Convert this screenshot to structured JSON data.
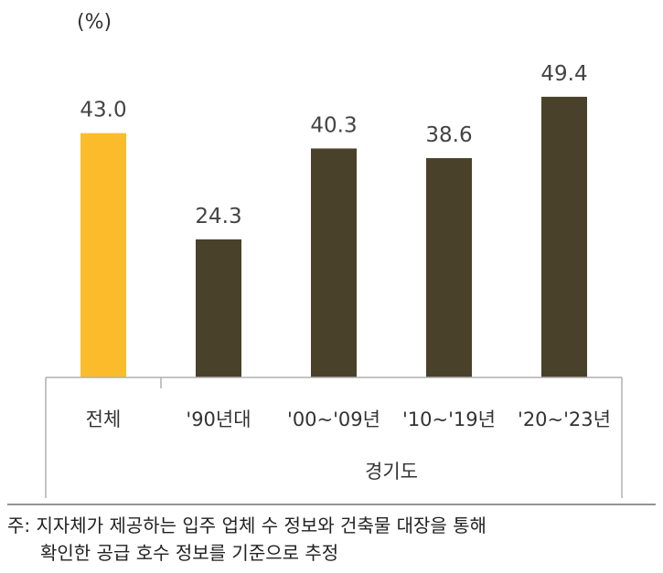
{
  "unit": "(%)",
  "chart_data": {
    "type": "bar",
    "categories": [
      "전체",
      "'90년대",
      "'00~'09년",
      "'10~'19년",
      "'20~'23년"
    ],
    "values": [
      43.0,
      24.3,
      40.3,
      38.6,
      49.4
    ],
    "value_labels": [
      "43.0",
      "24.3",
      "40.3",
      "38.6",
      "49.4"
    ],
    "group_label": "경기도",
    "ylim": [
      0,
      60
    ],
    "grid": false,
    "legend": "none",
    "colors": {
      "highlight": "#FBBC2C",
      "default": "#4A412A",
      "axis": "#B0B0B0"
    },
    "highlight_index": 0
  },
  "footnote": {
    "line1": "주: 지자체가 제공하는 입주 업체 수 정보와 건축물 대장을 통해",
    "line2": "확인한 공급 호수 정보를 기준으로 추정"
  }
}
